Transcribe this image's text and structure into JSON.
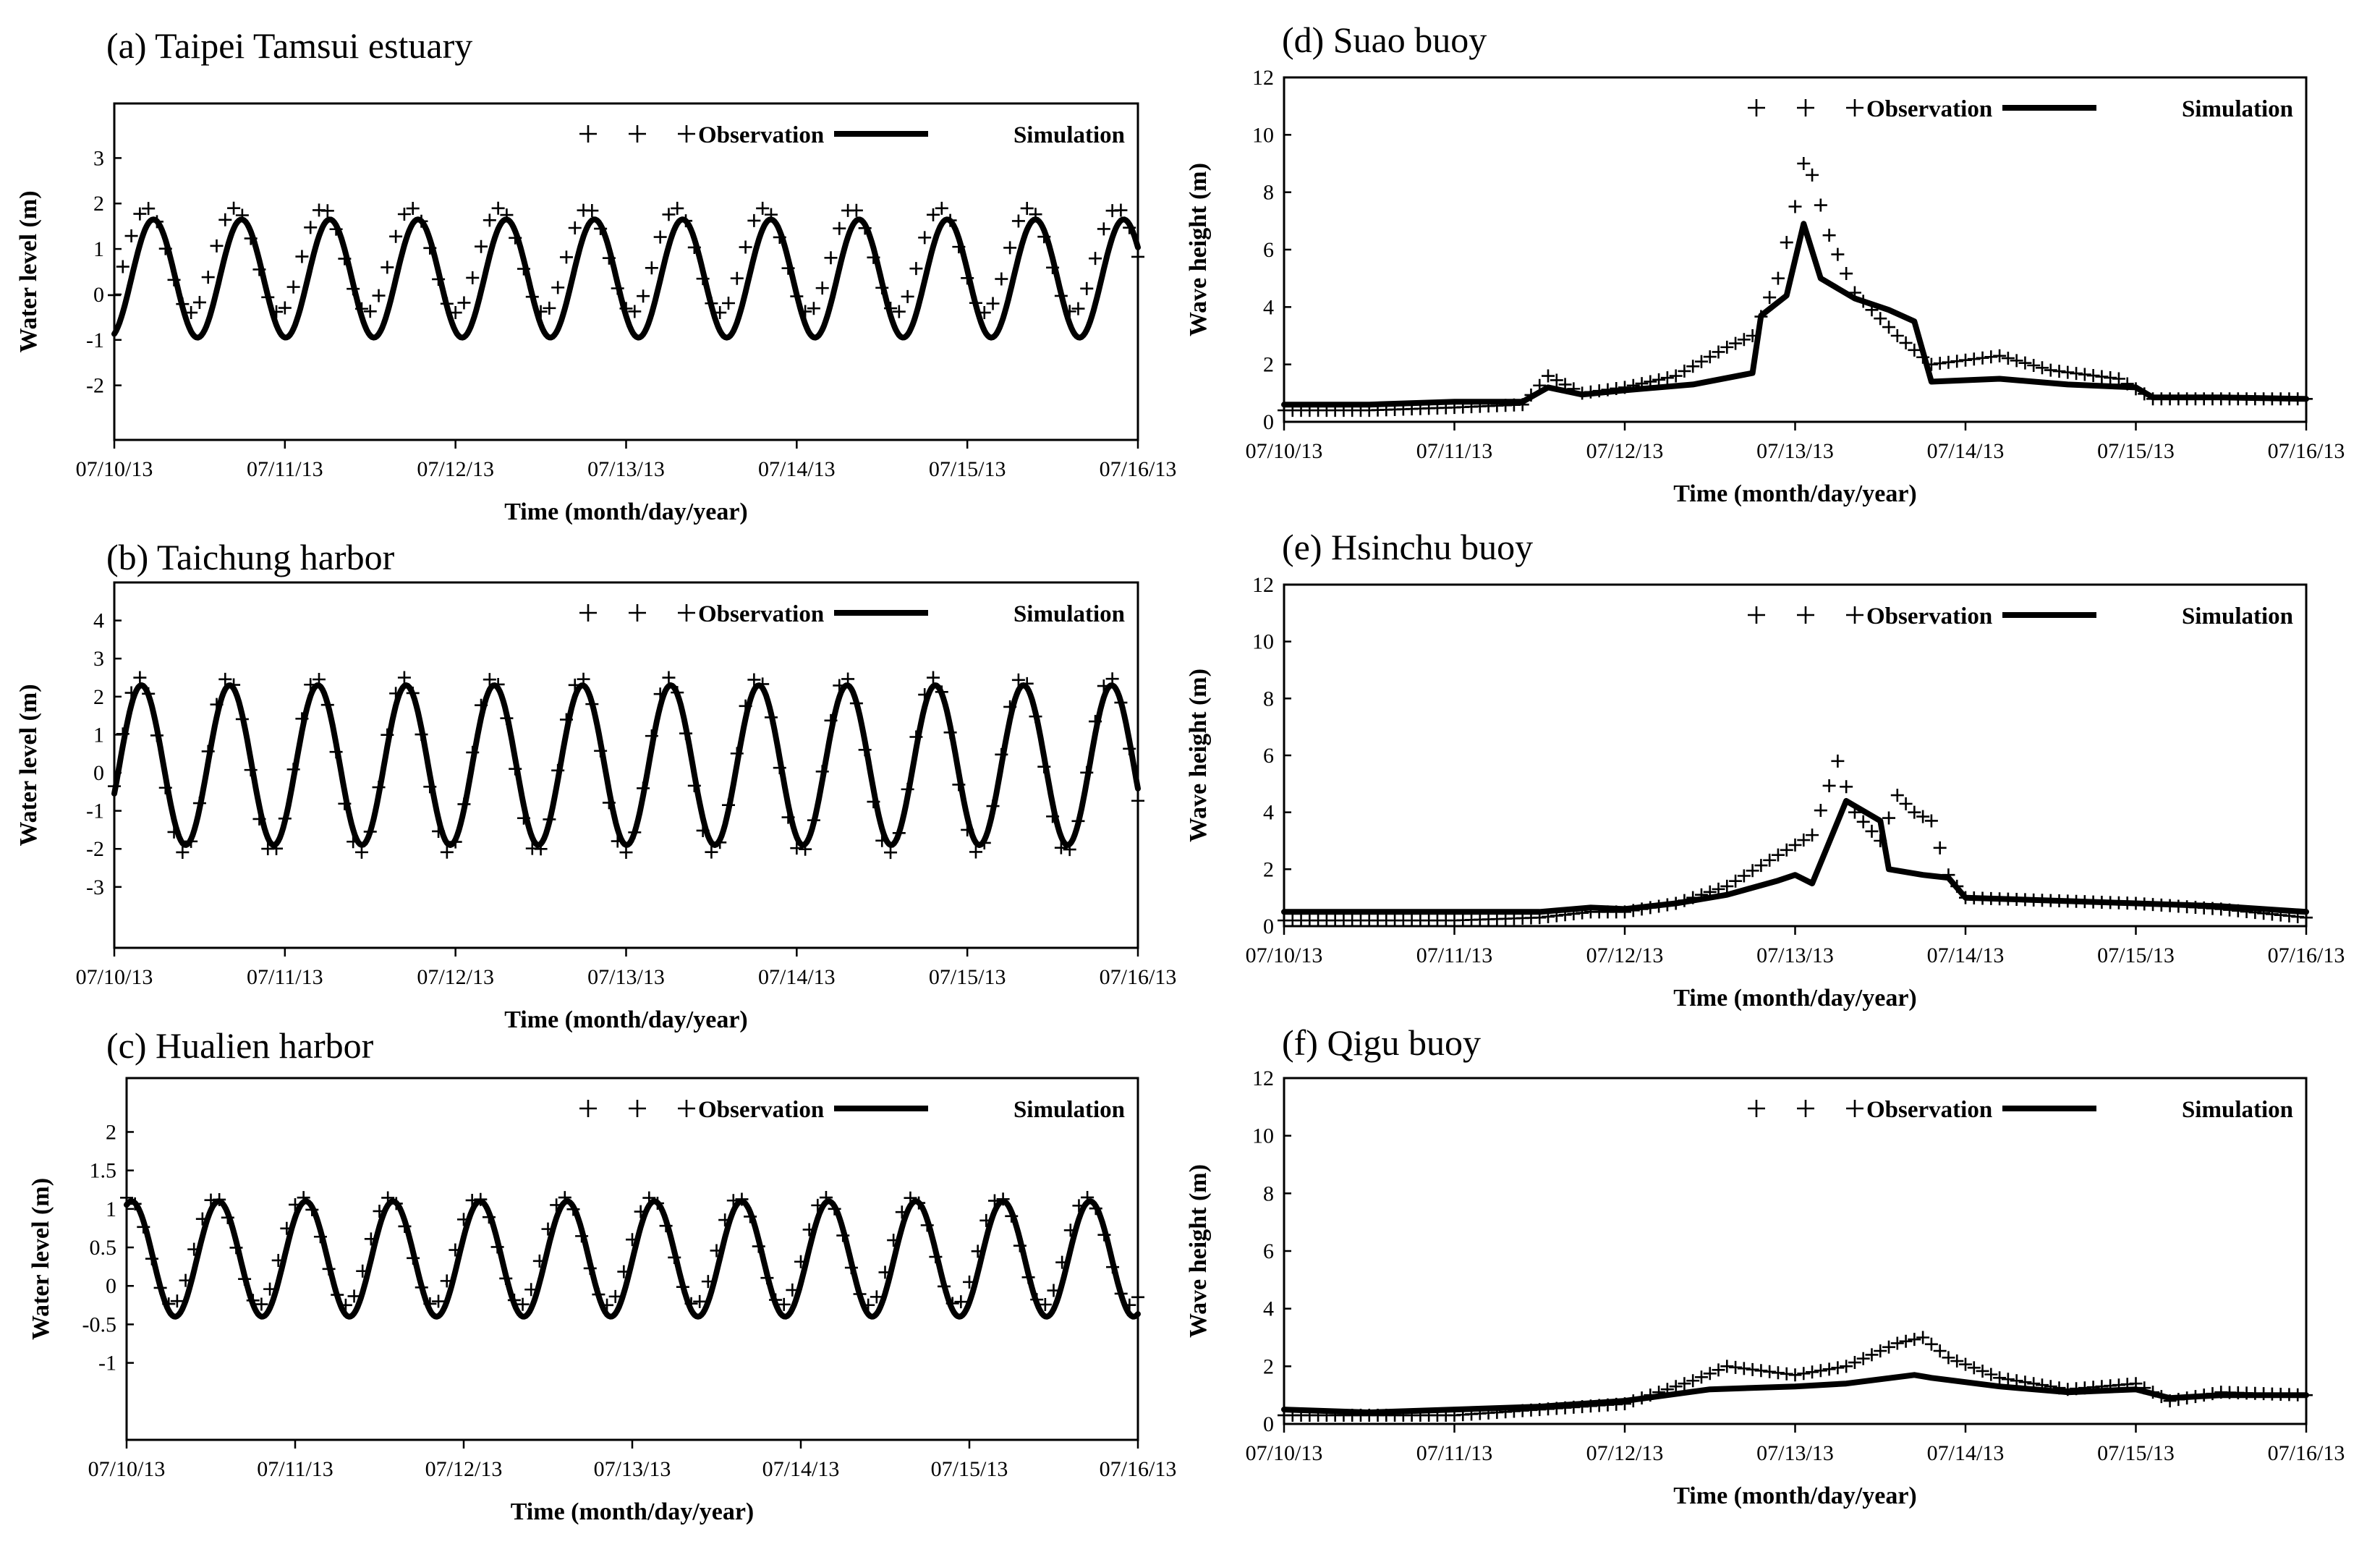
{
  "figure": {
    "common": {
      "xlabel": "Time  (month/day/year)",
      "x_ticks": [
        "07/10/13",
        "07/11/13",
        "07/12/13",
        "07/13/13",
        "07/14/13",
        "07/15/13",
        "07/16/13"
      ],
      "legend": {
        "observation": "Observation",
        "simulation": "Simulation"
      }
    }
  },
  "chart_data": [
    {
      "id": "a",
      "type": "line",
      "title": "(a) Taipei Tamsui estuary",
      "ylabel": "Water level  (m)",
      "ylim": [
        -3.2,
        4.2
      ],
      "y_ticks": [
        "3",
        "2",
        "1",
        "0",
        "-1",
        "-2"
      ],
      "y_tick_values": [
        3,
        2,
        1,
        0,
        -1,
        -2
      ],
      "xlim": [
        0,
        6
      ],
      "legend_position": "top-right",
      "series": [
        {
          "name": "Simulation",
          "style": "line",
          "kind": "tide",
          "mean": 0.35,
          "amp": 1.3,
          "period": 0.517,
          "phase": 0.1
        },
        {
          "name": "Observation",
          "style": "plus",
          "kind": "tide",
          "mean": 0.75,
          "amp": 1.15,
          "period": 0.517,
          "phase": 0.06,
          "step": 0.05
        }
      ]
    },
    {
      "id": "b",
      "type": "line",
      "title": "(b) Taichung harbor",
      "ylabel": "Water level  (m)",
      "ylim": [
        -4.6,
        5.0
      ],
      "y_ticks": [
        "4",
        "3",
        "2",
        "1",
        "0",
        "-1",
        "-2",
        "-3"
      ],
      "y_tick_values": [
        4,
        3,
        2,
        1,
        0,
        -1,
        -2,
        -3
      ],
      "xlim": [
        0,
        6
      ],
      "legend_position": "top-right",
      "series": [
        {
          "name": "Simulation",
          "style": "line",
          "kind": "tide",
          "mean": 0.2,
          "amp": 2.1,
          "period": 0.517,
          "phase": 0.03
        },
        {
          "name": "Observation",
          "style": "plus",
          "kind": "tide",
          "mean": 0.2,
          "amp": 2.3,
          "period": 0.517,
          "phase": 0.02,
          "step": 0.05
        }
      ]
    },
    {
      "id": "c",
      "type": "line",
      "title": "(c) Hualien harbor",
      "ylabel": "Water level  (m)",
      "ylim": [
        -2.0,
        2.7
      ],
      "y_ticks": [
        "2",
        "1.5",
        "1",
        "0.5",
        "0",
        "-0.5",
        "-1"
      ],
      "y_tick_values": [
        2,
        1.5,
        1,
        0.5,
        0,
        -0.5,
        -1
      ],
      "xlim": [
        0,
        6
      ],
      "legend_position": "top-right",
      "series": [
        {
          "name": "Simulation",
          "style": "line",
          "kind": "tide",
          "mean": 0.35,
          "amp": 0.75,
          "period": 0.517,
          "phase": -0.1
        },
        {
          "name": "Observation",
          "style": "plus",
          "kind": "tide",
          "mean": 0.45,
          "amp": 0.7,
          "period": 0.517,
          "phase": -0.12,
          "step": 0.05
        }
      ]
    },
    {
      "id": "d",
      "type": "line",
      "title": "(d)  Suao buoy",
      "ylabel": "Wave height  (m)",
      "ylim": [
        0,
        12
      ],
      "y_ticks": [
        "12",
        "10",
        "8",
        "6",
        "4",
        "2",
        "0"
      ],
      "y_tick_values": [
        12,
        10,
        8,
        6,
        4,
        2,
        0
      ],
      "xlim": [
        0,
        6
      ],
      "legend_position": "top-right",
      "series": [
        {
          "name": "Simulation",
          "style": "line",
          "kind": "points",
          "x": [
            0,
            0.5,
            1.0,
            1.4,
            1.55,
            1.75,
            2.0,
            2.4,
            2.75,
            2.8,
            2.95,
            3.05,
            3.15,
            3.35,
            3.55,
            3.7,
            3.8,
            4.2,
            4.6,
            5.0,
            5.1,
            5.5,
            6.0
          ],
          "y": [
            0.6,
            0.6,
            0.7,
            0.7,
            1.2,
            0.95,
            1.1,
            1.3,
            1.7,
            3.7,
            4.4,
            6.9,
            5.0,
            4.3,
            3.9,
            3.5,
            1.4,
            1.5,
            1.3,
            1.2,
            0.85,
            0.85,
            0.8
          ]
        },
        {
          "name": "Observation",
          "style": "plus",
          "kind": "points",
          "x": [
            0,
            0.5,
            1.0,
            1.4,
            1.55,
            1.75,
            2.0,
            2.3,
            2.6,
            2.75,
            2.9,
            3.0,
            3.05,
            3.1,
            3.2,
            3.35,
            3.6,
            3.8,
            4.2,
            4.5,
            4.9,
            5.1,
            5.5,
            6.0
          ],
          "y": [
            0.4,
            0.4,
            0.5,
            0.6,
            1.6,
            1.0,
            1.2,
            1.6,
            2.6,
            3.0,
            5.0,
            7.5,
            9.0,
            8.6,
            6.5,
            4.5,
            3.0,
            2.0,
            2.3,
            1.8,
            1.5,
            0.8,
            0.8,
            0.8
          ],
          "step": 0.05
        }
      ]
    },
    {
      "id": "e",
      "type": "line",
      "title": "(e)  Hsinchu buoy",
      "ylabel": "Wave height  (m)",
      "ylim": [
        0,
        12
      ],
      "y_ticks": [
        "12",
        "10",
        "8",
        "6",
        "4",
        "2",
        "0"
      ],
      "y_tick_values": [
        12,
        10,
        8,
        6,
        4,
        2,
        0
      ],
      "xlim": [
        0,
        6
      ],
      "legend_position": "top-right",
      "series": [
        {
          "name": "Simulation",
          "style": "line",
          "kind": "points",
          "x": [
            0,
            0.5,
            1.0,
            1.5,
            1.8,
            2.0,
            2.3,
            2.6,
            2.9,
            3.0,
            3.1,
            3.3,
            3.5,
            3.55,
            3.75,
            3.9,
            4.0,
            4.5,
            5.0,
            5.5,
            6.0
          ],
          "y": [
            0.5,
            0.5,
            0.5,
            0.5,
            0.65,
            0.6,
            0.8,
            1.1,
            1.6,
            1.8,
            1.5,
            4.4,
            3.7,
            2.0,
            1.8,
            1.7,
            1.0,
            0.9,
            0.8,
            0.7,
            0.5
          ]
        },
        {
          "name": "Observation",
          "style": "plus",
          "kind": "points",
          "x": [
            0,
            0.5,
            1.0,
            1.5,
            1.8,
            2.0,
            2.3,
            2.6,
            2.9,
            3.1,
            3.25,
            3.35,
            3.5,
            3.6,
            3.7,
            3.8,
            3.9,
            4.0,
            4.5,
            5.0,
            5.5,
            6.0
          ],
          "y": [
            0.2,
            0.2,
            0.2,
            0.3,
            0.5,
            0.5,
            0.8,
            1.4,
            2.5,
            3.2,
            5.8,
            4.0,
            3.0,
            4.6,
            4.0,
            3.7,
            1.8,
            1.0,
            0.9,
            0.8,
            0.6,
            0.3
          ],
          "step": 0.05
        }
      ]
    },
    {
      "id": "f",
      "type": "line",
      "title": "(f)  Qigu buoy",
      "ylabel": "Wave height  (m)",
      "ylim": [
        0,
        12
      ],
      "y_ticks": [
        "12",
        "10",
        "8",
        "6",
        "4",
        "2",
        "0"
      ],
      "y_tick_values": [
        12,
        10,
        8,
        6,
        4,
        2,
        0
      ],
      "xlim": [
        0,
        6
      ],
      "legend_position": "top-right",
      "series": [
        {
          "name": "Simulation",
          "style": "line",
          "kind": "points",
          "x": [
            0,
            0.5,
            1.0,
            1.5,
            2.0,
            2.5,
            3.0,
            3.3,
            3.7,
            3.8,
            4.2,
            4.6,
            5.0,
            5.2,
            5.5,
            6.0
          ],
          "y": [
            0.5,
            0.4,
            0.5,
            0.6,
            0.8,
            1.2,
            1.3,
            1.4,
            1.7,
            1.6,
            1.3,
            1.1,
            1.2,
            0.9,
            1.0,
            1.0
          ]
        },
        {
          "name": "Observation",
          "style": "plus",
          "kind": "points",
          "x": [
            0,
            0.5,
            1.0,
            1.5,
            2.0,
            2.4,
            2.6,
            3.0,
            3.3,
            3.6,
            3.75,
            3.9,
            4.2,
            4.6,
            5.0,
            5.2,
            5.5,
            6.0
          ],
          "y": [
            0.3,
            0.3,
            0.3,
            0.5,
            0.7,
            1.5,
            2.0,
            1.7,
            2.0,
            2.8,
            3.0,
            2.3,
            1.6,
            1.2,
            1.4,
            0.8,
            1.1,
            1.0
          ],
          "step": 0.05
        }
      ]
    }
  ]
}
